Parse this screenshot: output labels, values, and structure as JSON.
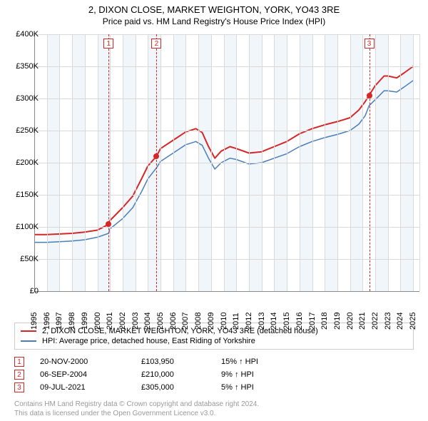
{
  "title": {
    "line1": "2, DIXON CLOSE, MARKET WEIGHTON, YORK, YO43 3RE",
    "line2": "Price paid vs. HM Land Registry's House Price Index (HPI)"
  },
  "chart": {
    "type": "line",
    "background_color": "#ffffff",
    "grid_color": "#d9d9d9",
    "axis_color": "#888888",
    "band_color": "#e6eef7",
    "x": {
      "min": 1995,
      "max": 2025.5,
      "ticks": [
        1995,
        1996,
        1997,
        1998,
        1999,
        2000,
        2001,
        2002,
        2003,
        2004,
        2005,
        2006,
        2007,
        2008,
        2009,
        2010,
        2011,
        2012,
        2013,
        2014,
        2015,
        2016,
        2017,
        2018,
        2019,
        2020,
        2021,
        2022,
        2023,
        2024,
        2025
      ]
    },
    "y": {
      "min": 0,
      "max": 400000,
      "ticks": [
        0,
        50000,
        100000,
        150000,
        200000,
        250000,
        300000,
        350000,
        400000
      ],
      "tick_labels": [
        "£0",
        "£50K",
        "£100K",
        "£150K",
        "£200K",
        "£250K",
        "£300K",
        "£350K",
        "£400K"
      ]
    },
    "series": [
      {
        "id": "property",
        "label": "2, DIXON CLOSE, MARKET WEIGHTON, YORK, YO43 3RE (detached house)",
        "color": "#d62728",
        "width": 2,
        "data": [
          [
            1995,
            88000
          ],
          [
            1996,
            88000
          ],
          [
            1997,
            89000
          ],
          [
            1998,
            90000
          ],
          [
            1999,
            92000
          ],
          [
            2000,
            95000
          ],
          [
            2000.89,
            103950
          ],
          [
            2001,
            110000
          ],
          [
            2002,
            130000
          ],
          [
            2002.8,
            148000
          ],
          [
            2003.5,
            175000
          ],
          [
            2004.0,
            195000
          ],
          [
            2004.68,
            210000
          ],
          [
            2005,
            222000
          ],
          [
            2006,
            235000
          ],
          [
            2007,
            248000
          ],
          [
            2007.8,
            253000
          ],
          [
            2008.3,
            247000
          ],
          [
            2008.8,
            225000
          ],
          [
            2009.3,
            207000
          ],
          [
            2009.8,
            218000
          ],
          [
            2010.5,
            225000
          ],
          [
            2011,
            222000
          ],
          [
            2012,
            215000
          ],
          [
            2013,
            217000
          ],
          [
            2014,
            225000
          ],
          [
            2015,
            233000
          ],
          [
            2016,
            245000
          ],
          [
            2017,
            253000
          ],
          [
            2018,
            259000
          ],
          [
            2019,
            264000
          ],
          [
            2020,
            270000
          ],
          [
            2020.7,
            282000
          ],
          [
            2021.2,
            295000
          ],
          [
            2021.52,
            305000
          ],
          [
            2022,
            320000
          ],
          [
            2022.7,
            335000
          ],
          [
            2023,
            335000
          ],
          [
            2023.7,
            332000
          ],
          [
            2024.3,
            340000
          ],
          [
            2025,
            350000
          ]
        ]
      },
      {
        "id": "hpi",
        "label": "HPI: Average price, detached house, East Riding of Yorkshire",
        "color": "#4a7ebb",
        "width": 1.5,
        "data": [
          [
            1995,
            76000
          ],
          [
            1996,
            76000
          ],
          [
            1997,
            77000
          ],
          [
            1998,
            78000
          ],
          [
            1999,
            80000
          ],
          [
            2000,
            84000
          ],
          [
            2000.89,
            90000
          ],
          [
            2001,
            97000
          ],
          [
            2002,
            113000
          ],
          [
            2002.8,
            130000
          ],
          [
            2003.5,
            155000
          ],
          [
            2004.0,
            175000
          ],
          [
            2004.68,
            192000
          ],
          [
            2005,
            202000
          ],
          [
            2006,
            215000
          ],
          [
            2007,
            228000
          ],
          [
            2007.8,
            233000
          ],
          [
            2008.3,
            227000
          ],
          [
            2008.8,
            207000
          ],
          [
            2009.3,
            190000
          ],
          [
            2009.8,
            200000
          ],
          [
            2010.5,
            207000
          ],
          [
            2011,
            205000
          ],
          [
            2012,
            198000
          ],
          [
            2013,
            200000
          ],
          [
            2014,
            207000
          ],
          [
            2015,
            214000
          ],
          [
            2016,
            225000
          ],
          [
            2017,
            233000
          ],
          [
            2018,
            239000
          ],
          [
            2019,
            244000
          ],
          [
            2020,
            250000
          ],
          [
            2020.7,
            260000
          ],
          [
            2021.2,
            273000
          ],
          [
            2021.52,
            289000
          ],
          [
            2022,
            298000
          ],
          [
            2022.7,
            312000
          ],
          [
            2023,
            312000
          ],
          [
            2023.7,
            310000
          ],
          [
            2024.3,
            318000
          ],
          [
            2025,
            328000
          ]
        ]
      }
    ],
    "markers": [
      {
        "n": "1",
        "x": 2000.89,
        "y": 103950
      },
      {
        "n": "2",
        "x": 2004.68,
        "y": 210000
      },
      {
        "n": "3",
        "x": 2021.52,
        "y": 305000
      }
    ]
  },
  "legend": {
    "rows": [
      {
        "color": "#d62728",
        "label": "2, DIXON CLOSE, MARKET WEIGHTON, YORK, YO43 3RE (detached house)"
      },
      {
        "color": "#4a7ebb",
        "label": "HPI: Average price, detached house, East Riding of Yorkshire"
      }
    ]
  },
  "events": [
    {
      "n": "1",
      "date": "20-NOV-2000",
      "price": "£103,950",
      "pct": "15% ↑ HPI"
    },
    {
      "n": "2",
      "date": "06-SEP-2004",
      "price": "£210,000",
      "pct": "9% ↑ HPI"
    },
    {
      "n": "3",
      "date": "09-JUL-2021",
      "price": "£305,000",
      "pct": "5% ↑ HPI"
    }
  ],
  "footer": {
    "line1": "Contains HM Land Registry data © Crown copyright and database right 2024.",
    "line2": "This data is licensed under the Open Government Licence v3.0."
  }
}
